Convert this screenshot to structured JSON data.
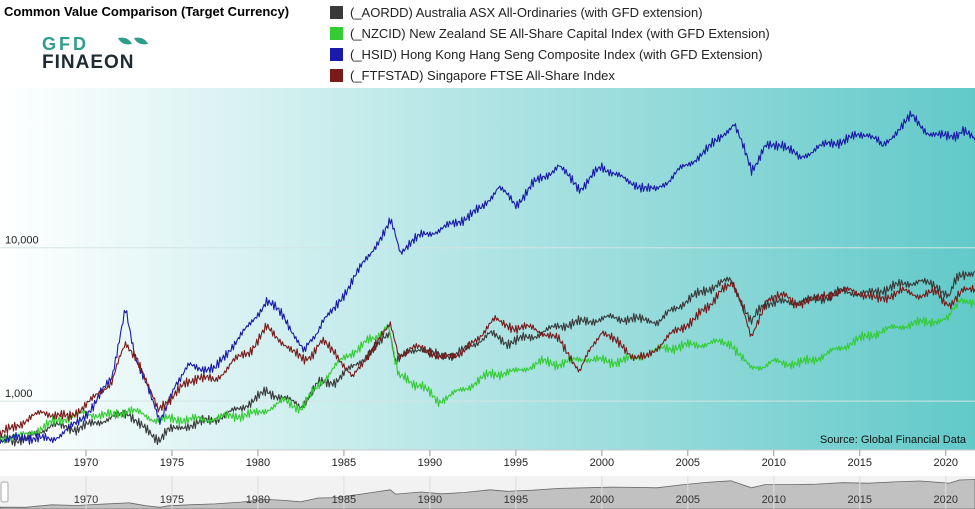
{
  "title": "Common Value Comparison (Target Currency)",
  "logo": {
    "line1": "GFD",
    "line2": "FINAEON",
    "green": "#2e9e8a",
    "dark": "#1e2b33"
  },
  "source": "Source: Global Financial Data",
  "colors": {
    "bg_left": "#ffffff",
    "bg_right": "#62c9c9"
  },
  "chart_data": {
    "type": "line",
    "yscale": "log",
    "ylim": [
      480,
      110000
    ],
    "xlim": [
      1965.0,
      2021.7
    ],
    "yticks": [
      1000,
      10000
    ],
    "ytick_labels": [
      "1,000",
      "10,000"
    ],
    "xticks": [
      "1970",
      "1975",
      "1980",
      "1985",
      "1990",
      "1995",
      "2000",
      "2005",
      "2010",
      "2015",
      "2020"
    ],
    "grid": true,
    "legend_position": "top",
    "series": [
      {
        "name": "(_AORDD) Australia ASX All-Ordinaries (with GFD extension)",
        "color": "#3a3a3a",
        "points": [
          [
            1965.0,
            565
          ],
          [
            1966.5,
            560
          ],
          [
            1968,
            700
          ],
          [
            1969.5,
            660
          ],
          [
            1970.5,
            720
          ],
          [
            1971.5,
            780
          ],
          [
            1972.5,
            840
          ],
          [
            1973.5,
            640
          ],
          [
            1974.3,
            560
          ],
          [
            1974.8,
            640
          ],
          [
            1976,
            700
          ],
          [
            1977.5,
            760
          ],
          [
            1979,
            900
          ],
          [
            1980.5,
            1150
          ],
          [
            1981.5,
            1050
          ],
          [
            1982.5,
            920
          ],
          [
            1983.5,
            1300
          ],
          [
            1984.5,
            1350
          ],
          [
            1986,
            1850
          ],
          [
            1987.7,
            2750
          ],
          [
            1988,
            1850
          ],
          [
            1989.5,
            2250
          ],
          [
            1990.7,
            1900
          ],
          [
            1992,
            2150
          ],
          [
            1993.5,
            2750
          ],
          [
            1994.5,
            2400
          ],
          [
            1996,
            2650
          ],
          [
            1997.5,
            3100
          ],
          [
            1999,
            3300
          ],
          [
            2000.5,
            3500
          ],
          [
            2002,
            3400
          ],
          [
            2003.2,
            3300
          ],
          [
            2004.5,
            4200
          ],
          [
            2006,
            5300
          ],
          [
            2007.5,
            6200
          ],
          [
            2008.7,
            3300
          ],
          [
            2009.5,
            4400
          ],
          [
            2011,
            4400
          ],
          [
            2012.5,
            4600
          ],
          [
            2014,
            5200
          ],
          [
            2015.5,
            5000
          ],
          [
            2017,
            5600
          ],
          [
            2018.5,
            6100
          ],
          [
            2020.2,
            5000
          ],
          [
            2020.8,
            6700
          ],
          [
            2021.7,
            7000
          ]
        ]
      },
      {
        "name": "(_NZCID) New Zealand SE All-Share Capital Index (with GFD Extension)",
        "color": "#33cc33",
        "points": [
          [
            1965.0,
            570
          ],
          [
            1966.5,
            600
          ],
          [
            1968.5,
            760
          ],
          [
            1970,
            830
          ],
          [
            1971.5,
            800
          ],
          [
            1972.5,
            880
          ],
          [
            1974,
            760
          ],
          [
            1975.5,
            760
          ],
          [
            1977,
            760
          ],
          [
            1978.5,
            800
          ],
          [
            1980,
            830
          ],
          [
            1981.5,
            1000
          ],
          [
            1982.5,
            900
          ],
          [
            1983.5,
            1250
          ],
          [
            1984.5,
            1700
          ],
          [
            1986,
            2300
          ],
          [
            1987.6,
            3000
          ],
          [
            1988.2,
            1450
          ],
          [
            1989.5,
            1250
          ],
          [
            1990.5,
            1000
          ],
          [
            1992,
            1200
          ],
          [
            1993.5,
            1500
          ],
          [
            1995,
            1550
          ],
          [
            1996.5,
            1800
          ],
          [
            1997.5,
            1750
          ],
          [
            1999,
            1900
          ],
          [
            2000.5,
            1800
          ],
          [
            2002,
            1900
          ],
          [
            2003.5,
            2200
          ],
          [
            2005,
            2300
          ],
          [
            2006.5,
            2400
          ],
          [
            2007.5,
            2400
          ],
          [
            2008.7,
            1600
          ],
          [
            2010,
            1800
          ],
          [
            2011.5,
            1750
          ],
          [
            2013,
            2000
          ],
          [
            2014.5,
            2400
          ],
          [
            2016,
            2800
          ],
          [
            2017.5,
            3100
          ],
          [
            2019,
            3300
          ],
          [
            2020.2,
            3500
          ],
          [
            2020.8,
            4700
          ],
          [
            2021.7,
            4300
          ]
        ]
      },
      {
        "name": "(_HSID) Hong Kong Hang Seng Composite Index (with GFD Extension)",
        "color": "#1a1aaa",
        "points": [
          [
            1965.0,
            560
          ],
          [
            1966.5,
            580
          ],
          [
            1968,
            560
          ],
          [
            1969.5,
            720
          ],
          [
            1970.5,
            950
          ],
          [
            1971.5,
            1450
          ],
          [
            1972.3,
            3900
          ],
          [
            1972.8,
            2100
          ],
          [
            1973.6,
            1200
          ],
          [
            1974.3,
            730
          ],
          [
            1975.2,
            1300
          ],
          [
            1976,
            1700
          ],
          [
            1977.5,
            1600
          ],
          [
            1978.5,
            2300
          ],
          [
            1979.5,
            3100
          ],
          [
            1980.5,
            4500
          ],
          [
            1981.5,
            3600
          ],
          [
            1982.7,
            2100
          ],
          [
            1983.8,
            3300
          ],
          [
            1984.5,
            4000
          ],
          [
            1985.5,
            6200
          ],
          [
            1986.5,
            9000
          ],
          [
            1987.7,
            15000
          ],
          [
            1988.3,
            9500
          ],
          [
            1989.5,
            12000
          ],
          [
            1990.5,
            13000
          ],
          [
            1991.5,
            14500
          ],
          [
            1993,
            18000
          ],
          [
            1994,
            25000
          ],
          [
            1995,
            19000
          ],
          [
            1996,
            26000
          ],
          [
            1997.5,
            34000
          ],
          [
            1998.7,
            24000
          ],
          [
            2000,
            34000
          ],
          [
            2001.5,
            27000
          ],
          [
            2003.2,
            23500
          ],
          [
            2004.5,
            32000
          ],
          [
            2006,
            42000
          ],
          [
            2007.7,
            65000
          ],
          [
            2008.7,
            32000
          ],
          [
            2009.5,
            45000
          ],
          [
            2010.5,
            48000
          ],
          [
            2011.5,
            38000
          ],
          [
            2012.5,
            45000
          ],
          [
            2014,
            50000
          ],
          [
            2015.5,
            56000
          ],
          [
            2016.3,
            46000
          ],
          [
            2018,
            72000
          ],
          [
            2019,
            56000
          ],
          [
            2020.2,
            52000
          ],
          [
            2021,
            58000
          ],
          [
            2021.7,
            50000
          ]
        ]
      },
      {
        "name": "(_FTFSTAD) Singapore FTSE All-Share Index",
        "color": "#7a1a1a",
        "points": [
          [
            1965.0,
            600
          ],
          [
            1966,
            700
          ],
          [
            1967.5,
            850
          ],
          [
            1969,
            780
          ],
          [
            1970.5,
            1050
          ],
          [
            1971.5,
            1350
          ],
          [
            1972.3,
            2400
          ],
          [
            1973,
            1900
          ],
          [
            1974.2,
            850
          ],
          [
            1975.2,
            1150
          ],
          [
            1976.5,
            1450
          ],
          [
            1977.5,
            1350
          ],
          [
            1978.5,
            1800
          ],
          [
            1979.5,
            2100
          ],
          [
            1980.5,
            3000
          ],
          [
            1981.5,
            2400
          ],
          [
            1982.7,
            1800
          ],
          [
            1983.8,
            2450
          ],
          [
            1984.5,
            2100
          ],
          [
            1985.5,
            1400
          ],
          [
            1986.5,
            2100
          ],
          [
            1987.7,
            3100
          ],
          [
            1988.2,
            2000
          ],
          [
            1989.5,
            2300
          ],
          [
            1990.7,
            1900
          ],
          [
            1992,
            2100
          ],
          [
            1993.8,
            3400
          ],
          [
            1995,
            3000
          ],
          [
            1996,
            3000
          ],
          [
            1997.5,
            2500
          ],
          [
            1998.7,
            1600
          ],
          [
            2000,
            2900
          ],
          [
            2001.7,
            2000
          ],
          [
            2002.5,
            1900
          ],
          [
            2004,
            2700
          ],
          [
            2005.5,
            3500
          ],
          [
            2007.6,
            6100
          ],
          [
            2008.7,
            2700
          ],
          [
            2009.6,
            4600
          ],
          [
            2010.5,
            4900
          ],
          [
            2011.6,
            4200
          ],
          [
            2013,
            4900
          ],
          [
            2014.5,
            5300
          ],
          [
            2016,
            4600
          ],
          [
            2017.5,
            5200
          ],
          [
            2018.5,
            4900
          ],
          [
            2019.5,
            5100
          ],
          [
            2020.3,
            4100
          ],
          [
            2021,
            5200
          ],
          [
            2021.7,
            5400
          ]
        ]
      }
    ]
  }
}
